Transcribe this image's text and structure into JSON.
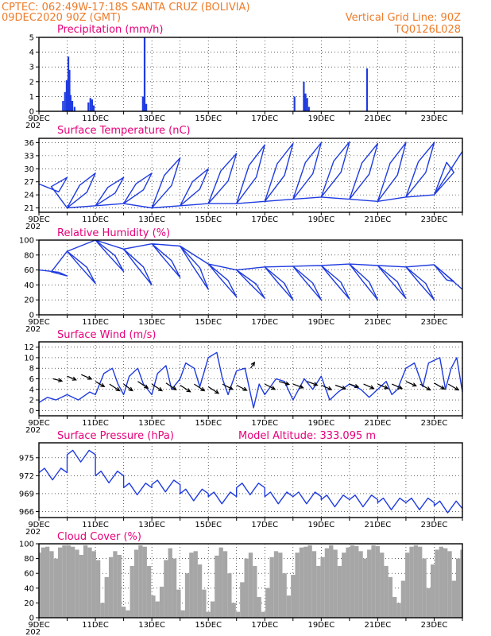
{
  "header": {
    "line1": "CPTEC:   062:49W-17:18S   SANTA CRUZ (BOLIVIA)",
    "line2": "09DEC2020 90Z (GMT)",
    "grid_note": "Vertical Grid Line: 90Z",
    "run_id": "TQ0126L028"
  },
  "colors": {
    "header": "#ee7c2a",
    "panel_title": "#e6007a",
    "series": "#1f3be0",
    "cloud": "#a6a6a6",
    "wind_arrow": "#000000"
  },
  "chart_data": [
    {
      "id": "precip",
      "type": "bar",
      "title": "Precipitation (mm/h)",
      "ylim": [
        0,
        5
      ],
      "yticks": [
        0,
        1,
        2,
        3,
        4,
        5
      ],
      "x": [
        9.85,
        9.92,
        9.98,
        10.04,
        10.08,
        10.12,
        10.18,
        10.26,
        10.75,
        10.82,
        10.88,
        10.94,
        12.68,
        12.74,
        12.8,
        18.05,
        18.38,
        18.44,
        18.5,
        18.56,
        20.62
      ],
      "values": [
        0.7,
        1.3,
        2.1,
        3.7,
        2.8,
        1.1,
        0.7,
        0.3,
        0.6,
        0.9,
        0.8,
        0.4,
        1.0,
        5.0,
        0.5,
        1.0,
        2.0,
        1.2,
        0.9,
        0.3,
        2.9
      ]
    },
    {
      "id": "temp",
      "type": "line",
      "title": "Surface Temperature (nC)",
      "ylim": [
        20,
        37
      ],
      "yticks": [
        21,
        24,
        27,
        30,
        33,
        36
      ],
      "phases": [
        0.0,
        0.7,
        1.0,
        0.44,
        0.0
      ],
      "mins": [
        22.0,
        21.0,
        21.5,
        22.0,
        21.0,
        21.5,
        22.0,
        22.0,
        22.5,
        23.0,
        23.5,
        23.0,
        22.5,
        23.5,
        24.0,
        24.0
      ],
      "maxs": [
        28.0,
        29.0,
        28.0,
        29.0,
        32.5,
        30.0,
        33.5,
        35.5,
        35.8,
        36.0,
        36.2,
        35.8,
        36.0,
        36.0,
        35.5,
        36.0
      ],
      "start_value": 26.5,
      "end_value": 34.0
    },
    {
      "id": "rh",
      "type": "line",
      "title": "Relative Humidity (%)",
      "ylim": [
        0,
        100
      ],
      "yticks": [
        0,
        20,
        40,
        60,
        80,
        100
      ],
      "phases": [
        0.0,
        0.7,
        1.0,
        0.44,
        0.0
      ],
      "highs": [
        62.0,
        85.0,
        100.0,
        88.0,
        95.0,
        92.0,
        68.0,
        60.0,
        64.0,
        65.0,
        66.0,
        68.0,
        66.0,
        64.0,
        67.0,
        65.0
      ],
      "lows": [
        52.0,
        42.0,
        58.0,
        40.0,
        50.0,
        34.0,
        24.0,
        22.0,
        20.0,
        20.0,
        21.0,
        20.0,
        22.0,
        20.0,
        22.0,
        20.0
      ],
      "start_value": 60.0,
      "end_value": 34.0
    },
    {
      "id": "wind",
      "type": "line",
      "title": "Surface Wind (m/s)",
      "ylim": [
        -1,
        13
      ],
      "yticks": [
        0,
        2,
        4,
        6,
        8,
        10,
        12
      ],
      "x": [
        9.0,
        9.3,
        9.6,
        10.0,
        10.4,
        10.8,
        11.0,
        11.3,
        11.6,
        11.8,
        12.0,
        12.2,
        12.5,
        12.7,
        13.0,
        13.2,
        13.5,
        13.7,
        14.0,
        14.2,
        14.5,
        14.7,
        15.0,
        15.3,
        15.5,
        15.7,
        16.0,
        16.3,
        16.6,
        16.8,
        17.0,
        17.4,
        17.7,
        18.0,
        18.4,
        18.7,
        19.0,
        19.3,
        19.6,
        20.0,
        20.4,
        20.7,
        21.0,
        21.3,
        21.5,
        21.7,
        22.0,
        22.3,
        22.6,
        22.8,
        23.0,
        23.2,
        23.4,
        23.6,
        23.8,
        24.0
      ],
      "values": [
        1.5,
        2.5,
        2.0,
        3.0,
        2.0,
        3.5,
        3.0,
        7.0,
        8.0,
        5.0,
        3.0,
        6.5,
        8.0,
        5.0,
        3.0,
        7.0,
        8.5,
        4.0,
        6.0,
        9.0,
        8.0,
        4.5,
        10.0,
        11.0,
        6.0,
        3.0,
        7.5,
        8.0,
        0.5,
        5.0,
        3.0,
        6.0,
        5.5,
        2.0,
        6.0,
        4.0,
        6.5,
        2.0,
        3.5,
        5.0,
        4.0,
        2.5,
        4.0,
        5.5,
        3.0,
        4.0,
        8.0,
        9.0,
        4.5,
        9.0,
        9.5,
        10.0,
        4.0,
        8.0,
        10.0,
        3.5
      ],
      "vectors": {
        "x": [
          9.5,
          10.0,
          10.5,
          11.0,
          11.5,
          12.0,
          12.5,
          13.0,
          13.5,
          14.0,
          14.5,
          15.0,
          15.5,
          16.0,
          16.5,
          17.0,
          17.5,
          18.0,
          18.5,
          19.0,
          19.5,
          20.0,
          20.5,
          21.0,
          21.5,
          22.0,
          22.5,
          23.0,
          23.5
        ],
        "y": [
          6.0,
          6.5,
          6.8,
          5.5,
          5.0,
          5.0,
          5.5,
          5.0,
          5.2,
          4.8,
          5.0,
          4.5,
          5.0,
          4.8,
          8.0,
          5.0,
          5.5,
          5.0,
          5.5,
          4.8,
          4.8,
          5.0,
          5.0,
          5.0,
          5.0,
          5.5,
          5.0,
          5.2,
          5.0
        ],
        "dx": [
          0.7,
          0.7,
          0.8,
          0.7,
          0.8,
          0.7,
          0.8,
          0.8,
          0.8,
          0.8,
          0.8,
          0.8,
          0.8,
          0.8,
          0.3,
          0.8,
          0.8,
          0.8,
          0.8,
          0.8,
          0.8,
          0.7,
          0.8,
          0.8,
          0.8,
          0.8,
          0.8,
          0.8,
          0.8
        ],
        "dy": [
          -0.3,
          -0.5,
          -0.6,
          -0.7,
          -0.9,
          -0.9,
          -0.9,
          -0.9,
          -0.9,
          -0.9,
          -0.9,
          -0.9,
          -0.7,
          -0.7,
          0.8,
          -0.7,
          -0.4,
          -0.5,
          -0.5,
          -0.6,
          -0.5,
          -0.4,
          -0.6,
          -0.6,
          -0.6,
          -0.6,
          -0.8,
          -0.8,
          -0.8
        ]
      }
    },
    {
      "id": "press",
      "type": "line",
      "title": "Surface Pressure (hPa)",
      "ylim": [
        965,
        977.5
      ],
      "yticks": [
        966,
        969,
        972,
        975
      ],
      "phases": [
        0.0,
        0.2,
        0.48,
        0.78,
        1.0
      ],
      "levels": [
        972.5,
        975.5,
        972.0,
        970.0,
        970.5,
        969.0,
        968.5,
        970.0,
        968.5,
        968.5,
        968.0,
        968.0,
        967.5,
        967.5,
        967.0,
        967.0,
        966.5
      ],
      "amps": [
        1.5,
        1.5,
        1.5,
        1.5,
        1.5,
        1.5,
        1.5,
        1.5,
        1.5,
        1.5,
        1.5,
        1.5,
        1.5,
        1.5,
        1.5,
        1.5,
        1.5
      ],
      "offsets": [
        0.0,
        0.5,
        -0.8,
        0.5,
        0.0
      ],
      "altitude_note": "Model Altitude: 333.095 m"
    },
    {
      "id": "cloud",
      "type": "area",
      "title": "Cloud Cover (%)",
      "ylim": [
        0,
        100
      ],
      "yticks": [
        0,
        20,
        40,
        60,
        80,
        100
      ],
      "x": [
        9.0,
        9.15,
        9.3,
        9.45,
        9.6,
        9.75,
        9.9,
        10.05,
        10.2,
        10.35,
        10.5,
        10.65,
        10.8,
        10.95,
        11.1,
        11.25,
        11.4,
        11.55,
        11.7,
        11.85,
        12.0,
        12.15,
        12.3,
        12.45,
        12.6,
        12.75,
        12.9,
        13.05,
        13.2,
        13.35,
        13.5,
        13.65,
        13.8,
        13.95,
        14.1,
        14.25,
        14.4,
        14.55,
        14.7,
        14.85,
        15.0,
        15.15,
        15.3,
        15.45,
        15.6,
        15.75,
        15.9,
        16.05,
        16.2,
        16.35,
        16.5,
        16.65,
        16.8,
        16.95,
        17.1,
        17.25,
        17.4,
        17.55,
        17.7,
        17.85,
        18.0,
        18.15,
        18.3,
        18.45,
        18.6,
        18.75,
        18.9,
        19.05,
        19.2,
        19.35,
        19.5,
        19.65,
        19.8,
        19.95,
        20.1,
        20.25,
        20.4,
        20.55,
        20.7,
        20.85,
        21.0,
        21.15,
        21.3,
        21.45,
        21.6,
        21.75,
        21.9,
        22.05,
        22.2,
        22.35,
        22.5,
        22.65,
        22.8,
        22.95,
        23.1,
        23.25,
        23.4,
        23.55,
        23.7,
        23.85,
        24.0
      ],
      "values": [
        88,
        95,
        96,
        90,
        80,
        95,
        98,
        98,
        96,
        92,
        85,
        98,
        95,
        90,
        78,
        20,
        55,
        82,
        90,
        85,
        15,
        10,
        70,
        92,
        98,
        96,
        70,
        30,
        22,
        42,
        78,
        94,
        80,
        38,
        10,
        60,
        88,
        90,
        72,
        38,
        8,
        22,
        84,
        95,
        90,
        60,
        20,
        8,
        48,
        80,
        88,
        70,
        28,
        8,
        40,
        82,
        90,
        88,
        60,
        30,
        58,
        88,
        95,
        96,
        98,
        90,
        70,
        82,
        94,
        98,
        92,
        70,
        88,
        95,
        98,
        97,
        90,
        80,
        92,
        98,
        97,
        88,
        70,
        55,
        28,
        20,
        50,
        88,
        96,
        98,
        96,
        80,
        40,
        72,
        92,
        96,
        94,
        90,
        50,
        80,
        92
      ]
    }
  ],
  "x_axis": {
    "labels": [
      "9DEC",
      "11DEC",
      "13DEC",
      "15DEC",
      "17DEC",
      "19DEC",
      "21DEC",
      "23DEC"
    ],
    "label_days": [
      9,
      11,
      13,
      15,
      17,
      19,
      21,
      23
    ],
    "range": [
      9,
      24
    ],
    "year_fragment": "202"
  }
}
